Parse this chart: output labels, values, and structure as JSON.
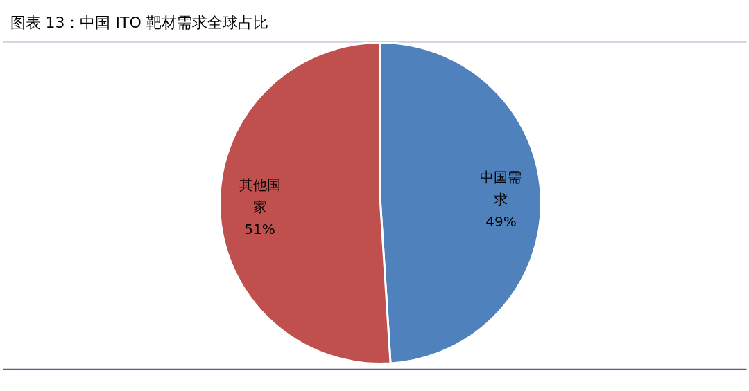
{
  "chart_data": {
    "type": "pie",
    "title": "图表 13：中国 ITO 靶材需求全球占比",
    "categories": [
      "中国需求",
      "其他国家"
    ],
    "values": [
      49,
      51
    ],
    "colors": [
      "#4f81bd",
      "#c0504d"
    ],
    "value_labels": [
      "49%",
      "51%"
    ]
  }
}
